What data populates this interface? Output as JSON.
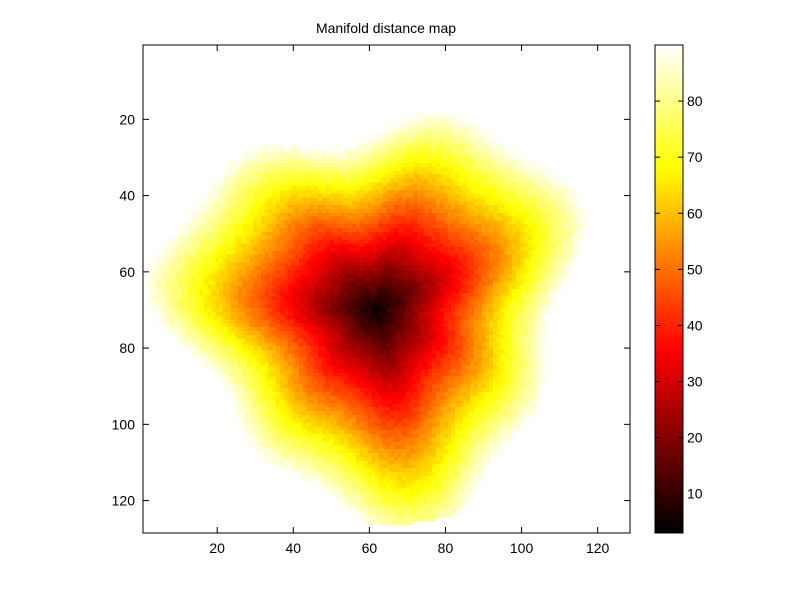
{
  "chart_data": {
    "type": "heatmap",
    "title": "Manifold distance map",
    "xlabel": "",
    "ylabel": "",
    "xlim": [
      0.5,
      128.5
    ],
    "ylim": [
      128.5,
      0.5
    ],
    "y_reversed": true,
    "grid": false,
    "x_ticks": [
      20,
      40,
      60,
      80,
      100,
      120
    ],
    "y_ticks": [
      20,
      40,
      60,
      80,
      100,
      120
    ],
    "colormap": "hot",
    "colorbar": {
      "placement": "right",
      "clim": [
        3,
        90
      ],
      "ticks": [
        10,
        20,
        30,
        40,
        50,
        60,
        70,
        80
      ]
    },
    "field": {
      "grid_size": 128,
      "disk_center": [
        64,
        64
      ],
      "disk_radius": 62.5,
      "source_point": [
        62,
        70
      ],
      "min_value": 3,
      "max_value": 90,
      "background": "#ffffff"
    }
  },
  "colors": {
    "axes": "#000000",
    "background": "#ffffff"
  }
}
